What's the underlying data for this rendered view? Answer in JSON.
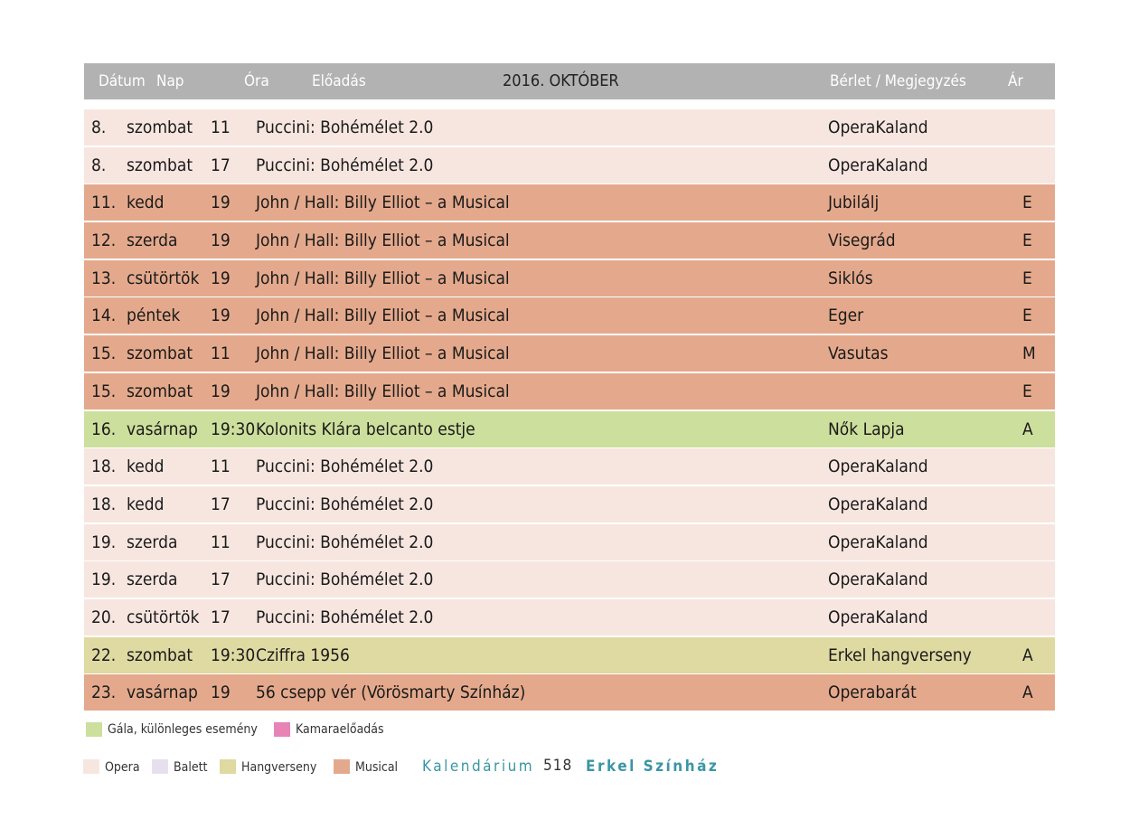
{
  "header": {
    "col_date": "Dátum",
    "col_day": "Nap",
    "col_hour": "Óra",
    "col_title": "Előadás",
    "month": "2016. OKTÓBER",
    "col_berlet": "Bérlet / Megjegyzés",
    "col_price": "Ár"
  },
  "rows": [
    {
      "date": "8.",
      "day": "szombat",
      "hour": "11",
      "title": "Puccini: Bohémélet 2.0",
      "berlet": "OperaKaland",
      "price": "",
      "type": "opera"
    },
    {
      "date": "8.",
      "day": "szombat",
      "hour": "17",
      "title": "Puccini: Bohémélet 2.0",
      "berlet": "OperaKaland",
      "price": "",
      "type": "opera"
    },
    {
      "date": "11.",
      "day": "kedd",
      "hour": "19",
      "title": "John / Hall: Billy Elliot – a Musical",
      "berlet": "Jubilálj",
      "price": "E",
      "type": "musical"
    },
    {
      "date": "12.",
      "day": "szerda",
      "hour": "19",
      "title": "John / Hall: Billy Elliot – a Musical",
      "berlet": "Visegrád",
      "price": "E",
      "type": "musical"
    },
    {
      "date": "13.",
      "day": "csütörtök",
      "hour": "19",
      "title": "John / Hall: Billy Elliot – a Musical",
      "berlet": "Siklós",
      "price": "E",
      "type": "musical"
    },
    {
      "date": "14.",
      "day": "péntek",
      "hour": "19",
      "title": "John / Hall: Billy Elliot – a Musical",
      "berlet": "Eger",
      "price": "E",
      "type": "musical"
    },
    {
      "date": "15.",
      "day": "szombat",
      "hour": "11",
      "title": "John / Hall: Billy Elliot – a Musical",
      "berlet": "Vasutas",
      "price": "M",
      "type": "musical"
    },
    {
      "date": "15.",
      "day": "szombat",
      "hour": "19",
      "title": "John / Hall: Billy Elliot – a Musical",
      "berlet": "",
      "price": "E",
      "type": "musical"
    },
    {
      "date": "16.",
      "day": "vasárnap",
      "hour": "19:30",
      "title": "Kolonits Klára belcanto estje",
      "berlet": "Nők Lapja",
      "price": "A",
      "type": "gala"
    },
    {
      "date": "18.",
      "day": "kedd",
      "hour": "11",
      "title": "Puccini: Bohémélet 2.0",
      "berlet": "OperaKaland",
      "price": "",
      "type": "opera"
    },
    {
      "date": "18.",
      "day": "kedd",
      "hour": "17",
      "title": "Puccini: Bohémélet 2.0",
      "berlet": "OperaKaland",
      "price": "",
      "type": "opera"
    },
    {
      "date": "19.",
      "day": "szerda",
      "hour": "11",
      "title": "Puccini: Bohémélet 2.0",
      "berlet": "OperaKaland",
      "price": "",
      "type": "opera"
    },
    {
      "date": "19.",
      "day": "szerda",
      "hour": "17",
      "title": "Puccini: Bohémélet 2.0",
      "berlet": "OperaKaland",
      "price": "",
      "type": "opera"
    },
    {
      "date": "20.",
      "day": "csütörtök",
      "hour": "17",
      "title": "Puccini: Bohémélet 2.0",
      "berlet": "OperaKaland",
      "price": "",
      "type": "opera"
    },
    {
      "date": "22.",
      "day": "szombat",
      "hour": "19:30",
      "title": "Cziffra 1956",
      "berlet": "Erkel hangverseny",
      "price": "A",
      "type": "concert"
    },
    {
      "date": "23.",
      "day": "vasárnap",
      "hour": "19",
      "title": "56 csepp vér (Vörösmarty Színház)",
      "berlet": "Operabarát",
      "price": "A",
      "type": "musical"
    }
  ],
  "legend": {
    "gala": "Gála, különleges esemény",
    "kamara": "Kamaraelőadás",
    "opera": "Opera",
    "balett": "Balett",
    "hangverseny": "Hangverseny",
    "musical": "Musical"
  },
  "colors": {
    "gala": "#cddf9c",
    "kamara": "#e783b5",
    "opera": "#f7e6e0",
    "balett": "#e6e0ee",
    "hangverseny": "#dfd9a2",
    "musical": "#e4a98c",
    "footer_accent": "#3a96a4"
  },
  "footer": {
    "kalendarium": "Kalendárium",
    "page": "518",
    "theatre": "Erkel Színház"
  }
}
